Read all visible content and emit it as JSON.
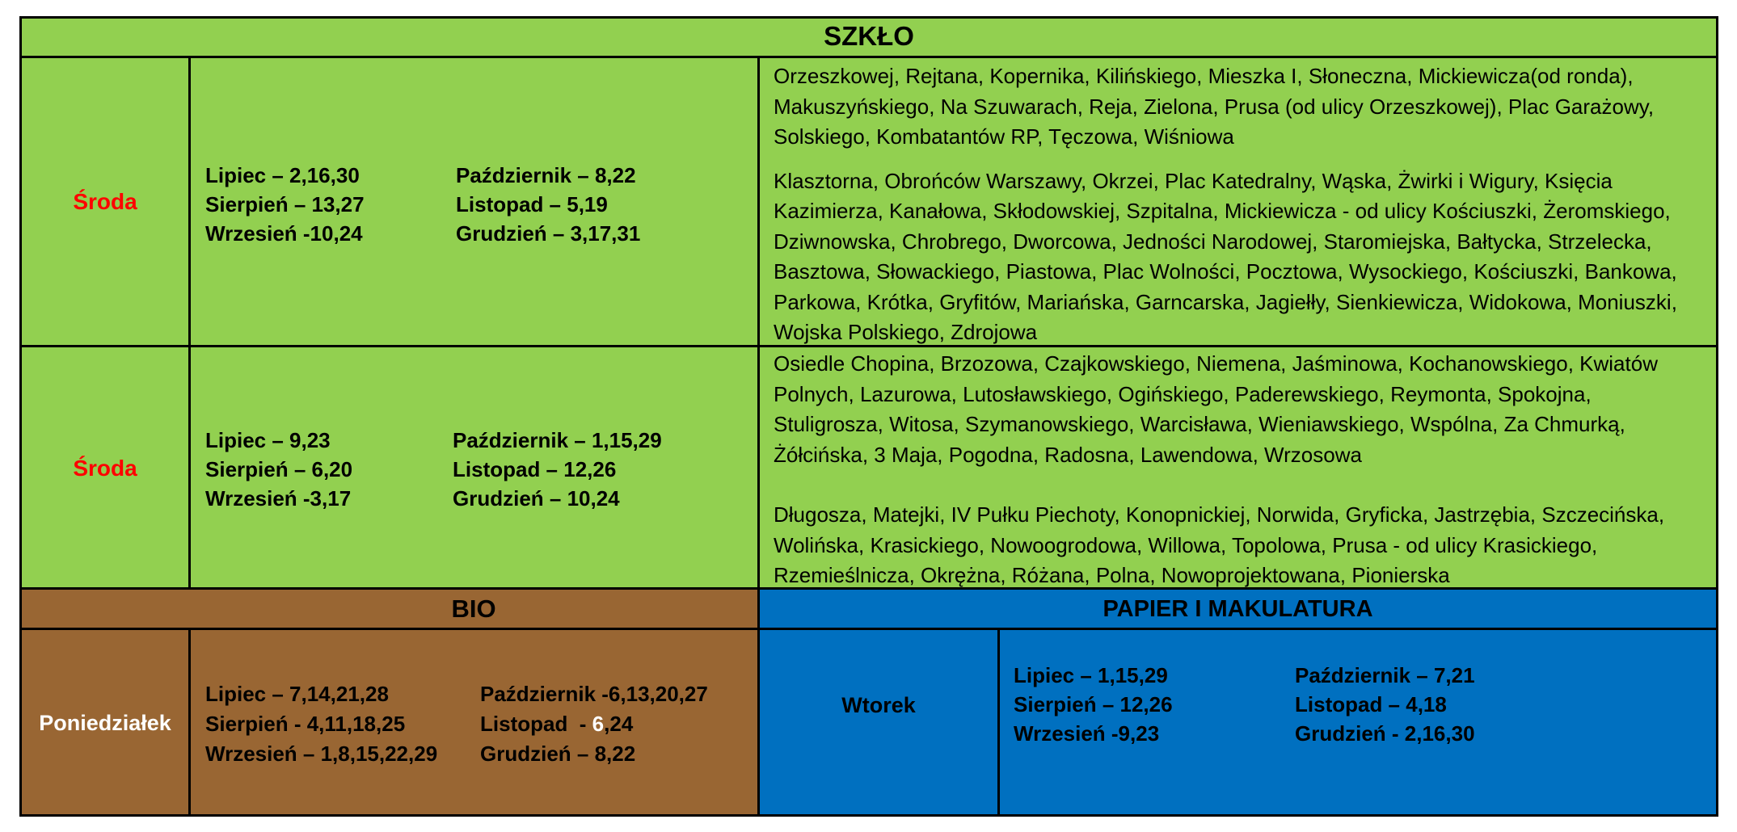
{
  "colors": {
    "glass": "#92d050",
    "bio": "#996633",
    "paper": "#0070c0",
    "accent_day": "#ff0000"
  },
  "glass": {
    "title": "SZKŁO",
    "row1": {
      "day": "Środa",
      "left": [
        "Lipiec – 2,16,30",
        "Sierpień – 13,27",
        "Wrzesień -10,24"
      ],
      "right": [
        "Październik – 8,22",
        "Listopad – 5,19",
        "Grudzień – 3,17,31"
      ],
      "streets_1": "Orzeszkowej, Rejtana, Kopernika, Kilińskiego, Mieszka I, Słoneczna, Mickiewicza(od ronda), Makuszyńskiego, Na Szuwarach, Reja, Zielona, Prusa (od ulicy Orzeszkowej),  Plac Garażowy, Solskiego, Kombatantów RP,  Tęczowa, Wiśniowa",
      "streets_2": "Klasztorna, Obrońców Warszawy, Okrzei, Plac Katedralny, Wąska, Żwirki i Wigury, Księcia Kazimierza, Kanałowa, Skłodowskiej, Szpitalna, Mickiewicza - od ulicy Kościuszki, Żeromskiego, Dziwnowska, Chrobrego, Dworcowa, Jedności Narodowej, Staromiejska, Bałtycka, Strzelecka, Basztowa, Słowackiego, Piastowa, Plac Wolności, Pocztowa, Wysockiego, Kościuszki, Bankowa, Parkowa, Krótka, Gryfitów, Mariańska, Garncarska, Jagiełły, Sienkiewicza, Widokowa, Moniuszki, Wojska Polskiego, Zdrojowa"
    },
    "row2": {
      "day": "Środa",
      "left": [
        "Lipiec – 9,23",
        "Sierpień – 6,20",
        "Wrzesień -3,17"
      ],
      "right": [
        "Październik – 1,15,29",
        "Listopad – 12,26",
        "Grudzień – 10,24"
      ],
      "streets_1": "Osiedle Chopina, Brzozowa, Czajkowskiego, Niemena, Jaśminowa, Kochanowskiego, Kwiatów Polnych, Lazurowa, Lutosławskiego, Ogińskiego, Paderewskiego, Reymonta, Spokojna, Stuligrosza, Witosa, Szymanowskiego, Warcisława, Wieniawskiego, Wspólna, Za Chmurką, Żółcińska, 3 Maja, Pogodna, Radosna, Lawendowa, Wrzosowa",
      "streets_2": "Długosza, Matejki, IV Pułku Piechoty, Konopnickiej, Norwida, Gryficka, Jastrzębia, Szczecińska, Wolińska, Krasickiego, Nowoogrodowa, Willowa, Topolowa, Prusa - od ulicy Krasickiego, Rzemieślnicza, Okrężna, Różana, Polna, Nowoprojektowana, Pionierska"
    }
  },
  "bio": {
    "title": "BIO",
    "day": "Poniedziałek",
    "left": [
      "Lipiec – 7,14,21,28",
      "Sierpień  - 4,11,18,25",
      "Wrzesień – 1,8,15,22,29"
    ],
    "right_1": "Październik -6,13,20,27",
    "right_2_prefix": "Listopad  - ",
    "right_2_highlight": "6",
    "right_2_suffix": ",24",
    "right_3": "Grudzień – 8,22"
  },
  "paper": {
    "title": "PAPIER I MAKULATURA",
    "day": "Wtorek",
    "left": [
      "Lipiec – 1,15,29",
      "Sierpień – 12,26",
      "Wrzesień -9,23"
    ],
    "right": [
      "Październik – 7,21",
      "Listopad – 4,18",
      "Grudzień  - 2,16,30"
    ]
  }
}
